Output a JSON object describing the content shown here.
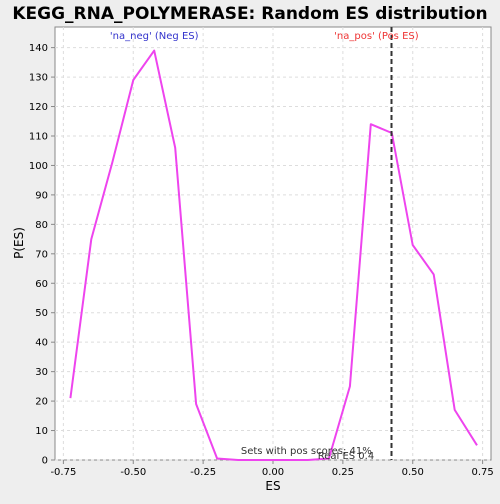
{
  "chart_data": {
    "type": "line",
    "title": "KEGG_RNA_POLYMERASE: Random ES distribution",
    "xlabel": "ES",
    "ylabel": "P(ES)",
    "xlim": [
      -0.78,
      0.78
    ],
    "ylim": [
      0,
      147
    ],
    "grid": true,
    "x_ticks": [
      -0.75,
      -0.5,
      -0.25,
      0.0,
      0.25,
      0.5,
      0.75
    ],
    "x_tick_labels": [
      "-0.75",
      "-0.50",
      "-0.25",
      "0.00",
      "0.25",
      "0.50",
      "0.75"
    ],
    "y_ticks": [
      0,
      10,
      20,
      30,
      40,
      50,
      60,
      70,
      80,
      90,
      100,
      110,
      120,
      130,
      140
    ],
    "series": [
      {
        "color": "#ee44ee",
        "x": [
          -0.725,
          -0.65,
          -0.575,
          -0.5,
          -0.425,
          -0.35,
          -0.275,
          -0.2,
          -0.125,
          -0.05,
          0.05,
          0.125,
          0.2,
          0.275,
          0.35,
          0.425,
          0.5,
          0.575,
          0.65,
          0.73
        ],
        "y": [
          21,
          75,
          101,
          129,
          139,
          106,
          19,
          0.5,
          0,
          0,
          0,
          0,
          0.5,
          25,
          114,
          111,
          73,
          63,
          17,
          5
        ]
      }
    ],
    "vline": {
      "x": 0.424,
      "style": "dashed",
      "color": "#333333"
    },
    "annotations": {
      "neg": {
        "text": "'na_neg' (Neg ES)",
        "color": "#3333cc",
        "x": -0.425
      },
      "pos": {
        "text": "'na_pos' (Pos ES)",
        "color": "#ee3333",
        "x": 0.37
      },
      "pos_scores": {
        "text": "Sets with pos scores: 41%",
        "x": -0.115,
        "y": 1
      },
      "real_es": {
        "text": "Real ES 0.4",
        "x": 0.16,
        "y": 0
      }
    },
    "colors": {
      "plot_bg": "#ffffff",
      "page_bg": "#eeeeee",
      "grid": "#dddddd",
      "axis": "#888888"
    }
  }
}
